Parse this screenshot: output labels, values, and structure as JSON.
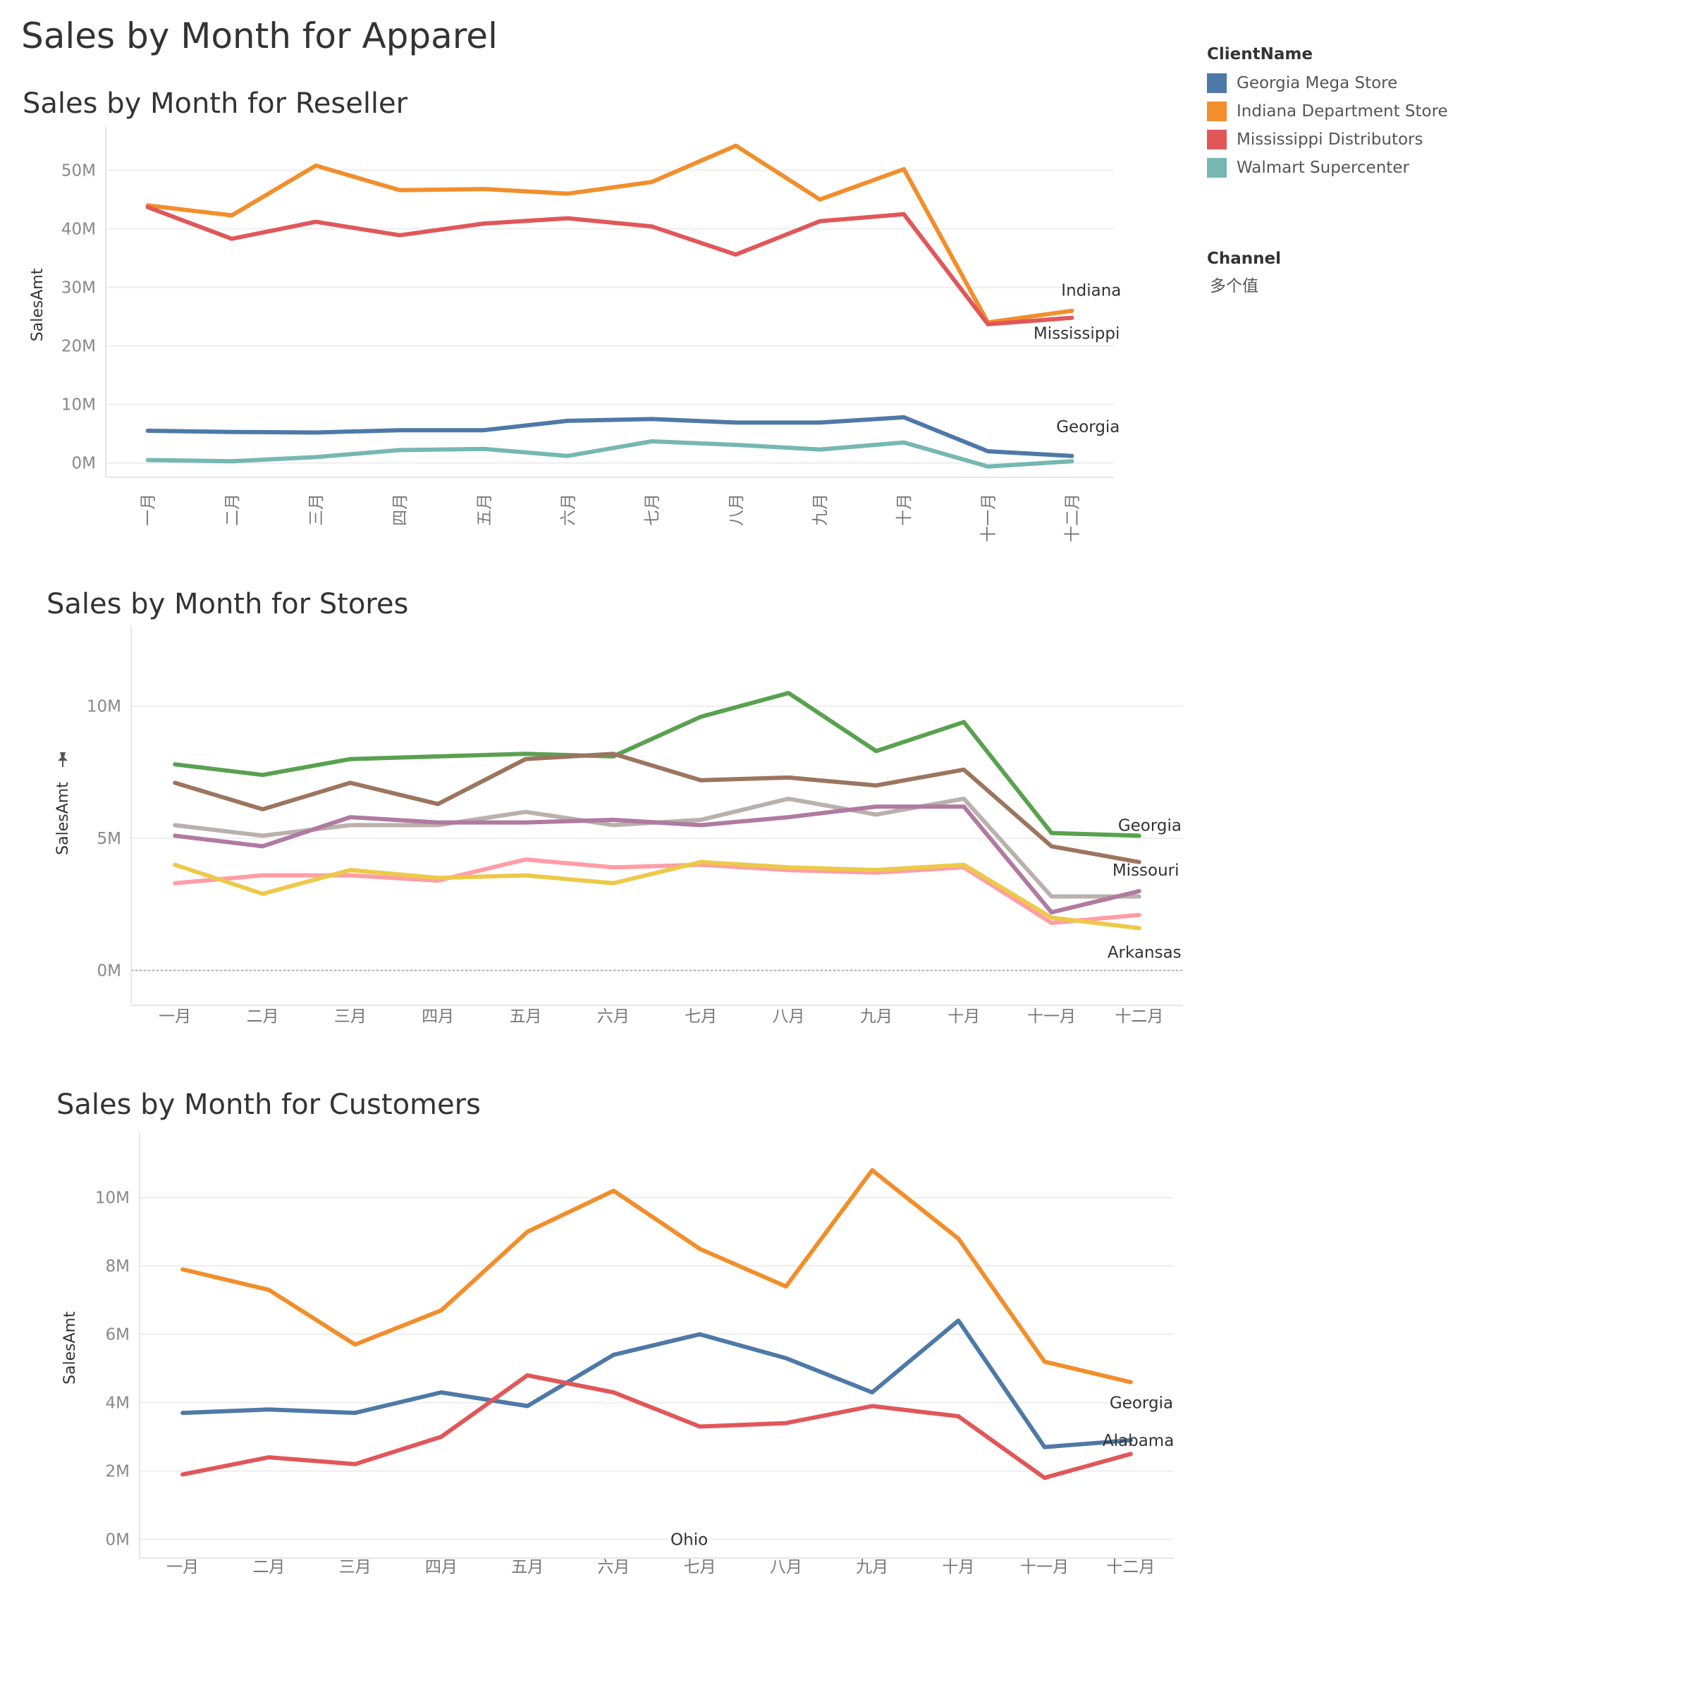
{
  "dashboard_title": "Sales by Month for Apparel",
  "legend": {
    "title": "ClientName",
    "items": [
      {
        "label": "Georgia Mega Store",
        "color": "#4e79a7"
      },
      {
        "label": "Indiana Department Store",
        "color": "#f28e2b"
      },
      {
        "label": "Mississippi Distributors",
        "color": "#e15759"
      },
      {
        "label": "Walmart Supercenter",
        "color": "#76b7b2"
      }
    ]
  },
  "filter": {
    "title": "Channel",
    "value": "多个值"
  },
  "icons": {
    "pin": "pin-icon"
  },
  "chart_data": [
    {
      "type": "line",
      "title": "Sales by Month for Reseller",
      "xlabel": "",
      "ylabel": "SalesAmt",
      "x_tick_orientation": "vertical",
      "categories": [
        "一月",
        "二月",
        "三月",
        "四月",
        "五月",
        "六月",
        "七月",
        "八月",
        "九月",
        "十月",
        "十一月",
        "十二月"
      ],
      "ylim": [
        -1,
        55
      ],
      "yticks": [
        {
          "value": 0,
          "label": "0M"
        },
        {
          "value": 10,
          "label": "10M"
        },
        {
          "value": 20,
          "label": "20M"
        },
        {
          "value": 30,
          "label": "30M"
        },
        {
          "value": 40,
          "label": "40M"
        },
        {
          "value": 50,
          "label": "50M"
        }
      ],
      "grid": true,
      "series": [
        {
          "color": "#f28e2b",
          "values": [
            44.0,
            42.3,
            50.8,
            46.6,
            46.8,
            46.0,
            48.0,
            54.2,
            45.0,
            50.2,
            24.0,
            26.0
          ]
        },
        {
          "color": "#e15759",
          "values": [
            43.7,
            38.3,
            41.2,
            38.9,
            40.9,
            41.8,
            40.4,
            35.6,
            41.3,
            42.5,
            23.7,
            24.8
          ]
        },
        {
          "color": "#4e79a7",
          "values": [
            5.5,
            5.3,
            5.2,
            5.6,
            5.6,
            7.2,
            7.5,
            6.9,
            6.9,
            7.8,
            2.0,
            1.2
          ]
        },
        {
          "color": "#76b7b2",
          "values": [
            0.5,
            0.3,
            1.0,
            2.2,
            2.4,
            1.2,
            3.7,
            3.1,
            2.3,
            3.5,
            -0.6,
            0.3
          ]
        }
      ],
      "annotations": [
        {
          "text": "Indiana",
          "category": "十二月",
          "y": 29.5,
          "anchor": "end",
          "dx": 70
        },
        {
          "text": "Mississippi",
          "category": "十二月",
          "y": 22.2,
          "anchor": "end",
          "dx": 68
        },
        {
          "text": "Georgia",
          "category": "十二月",
          "y": 6.2,
          "anchor": "end",
          "dx": 68
        }
      ]
    },
    {
      "type": "line",
      "title": "Sales by Month for Stores",
      "xlabel": "",
      "ylabel": "SalesAmt",
      "x_tick_orientation": "horizontal",
      "categories": [
        "一月",
        "二月",
        "三月",
        "四月",
        "五月",
        "六月",
        "七月",
        "八月",
        "九月",
        "十月",
        "十一月",
        "十二月"
      ],
      "ylim": [
        -1,
        12.5
      ],
      "yticks": [
        {
          "value": 0,
          "label": "0M"
        },
        {
          "value": 5,
          "label": "5M"
        },
        {
          "value": 10,
          "label": "10M"
        }
      ],
      "grid": true,
      "zero_line": true,
      "series": [
        {
          "color": "#59a14f",
          "values": [
            7.8,
            7.4,
            8.0,
            8.1,
            8.2,
            8.1,
            9.6,
            10.5,
            8.3,
            9.4,
            5.2,
            5.1
          ]
        },
        {
          "color": "#9c755f",
          "values": [
            7.1,
            6.1,
            7.1,
            6.3,
            8.0,
            8.2,
            7.2,
            7.3,
            7.0,
            7.6,
            4.7,
            4.1
          ]
        },
        {
          "color": "#bab0ac",
          "values": [
            5.5,
            5.1,
            5.5,
            5.5,
            6.0,
            5.5,
            5.7,
            6.5,
            5.9,
            6.5,
            2.8,
            2.8
          ]
        },
        {
          "color": "#b07aa1",
          "values": [
            5.1,
            4.7,
            5.8,
            5.6,
            5.6,
            5.7,
            5.5,
            5.8,
            6.2,
            6.2,
            2.2,
            3.0
          ]
        },
        {
          "color": "#ff9da7",
          "values": [
            3.3,
            3.6,
            3.6,
            3.4,
            4.2,
            3.9,
            4.0,
            3.8,
            3.7,
            3.9,
            1.8,
            2.1
          ]
        },
        {
          "color": "#edc948",
          "values": [
            4.0,
            2.9,
            3.8,
            3.5,
            3.6,
            3.3,
            4.1,
            3.9,
            3.8,
            4.0,
            2.0,
            1.6
          ]
        }
      ],
      "annotations": [
        {
          "text": "Georgia",
          "category": "十二月",
          "y": 5.5,
          "anchor": "start",
          "dx": -30
        },
        {
          "text": "Missouri",
          "category": "十二月",
          "y": 3.8,
          "anchor": "start",
          "dx": -38
        },
        {
          "text": "Arkansas",
          "category": "十二月",
          "y": 0.7,
          "anchor": "start",
          "dx": -45
        }
      ]
    },
    {
      "type": "line",
      "title": "Sales by Month for Customers",
      "xlabel": "",
      "ylabel": "SalesAmt",
      "x_tick_orientation": "horizontal",
      "categories": [
        "一月",
        "二月",
        "三月",
        "四月",
        "五月",
        "六月",
        "七月",
        "八月",
        "九月",
        "十月",
        "十一月",
        "十二月"
      ],
      "ylim": [
        -0.3,
        11.5
      ],
      "yticks": [
        {
          "value": 0,
          "label": "0M"
        },
        {
          "value": 2,
          "label": "2M"
        },
        {
          "value": 4,
          "label": "4M"
        },
        {
          "value": 6,
          "label": "6M"
        },
        {
          "value": 8,
          "label": "8M"
        },
        {
          "value": 10,
          "label": "10M"
        }
      ],
      "grid": true,
      "series": [
        {
          "color": "#f28e2b",
          "values": [
            7.9,
            7.3,
            5.7,
            6.7,
            9.0,
            10.2,
            8.5,
            7.4,
            10.8,
            8.8,
            5.2,
            4.6
          ]
        },
        {
          "color": "#4e79a7",
          "values": [
            3.7,
            3.8,
            3.7,
            4.3,
            3.9,
            5.4,
            6.0,
            5.3,
            4.3,
            6.4,
            2.7,
            2.9
          ]
        },
        {
          "color": "#e15759",
          "values": [
            1.9,
            2.4,
            2.2,
            3.0,
            4.8,
            4.3,
            3.3,
            3.4,
            3.9,
            3.6,
            1.8,
            2.5
          ]
        }
      ],
      "annotations": [
        {
          "text": "Georgia",
          "category": "十二月",
          "y": 4.0,
          "anchor": "start",
          "dx": -30
        },
        {
          "text": "Alabama",
          "category": "十二月",
          "y": 2.9,
          "anchor": "start",
          "dx": -40
        },
        {
          "text": "Ohio",
          "category": "七月",
          "y": 0.0,
          "anchor": "middle",
          "dx": -15
        }
      ]
    }
  ]
}
